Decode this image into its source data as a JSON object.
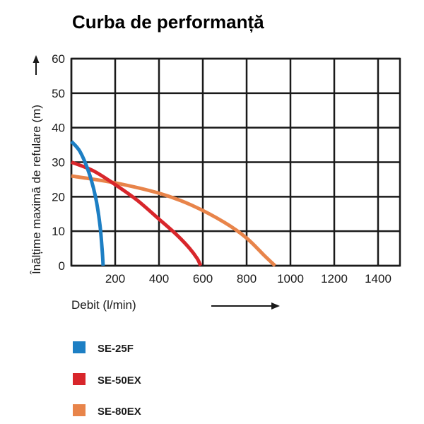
{
  "chart_data": {
    "type": "line",
    "title": "Curba de performanță",
    "xlabel": "Debit (l/min)",
    "ylabel": "Înălțime maximă de refulare (m)",
    "xlim": [
      0,
      1500
    ],
    "ylim": [
      0,
      60
    ],
    "x_ticks": [
      200,
      400,
      600,
      800,
      1000,
      1200,
      1400
    ],
    "y_ticks": [
      0,
      10,
      20,
      30,
      40,
      50,
      60
    ],
    "grid": true,
    "legend_position": "bottom-left",
    "series": [
      {
        "name": "SE-25F",
        "color": "#1d7fc4",
        "points": [
          [
            0,
            36
          ],
          [
            40,
            33
          ],
          [
            80,
            27
          ],
          [
            110,
            20
          ],
          [
            130,
            12
          ],
          [
            140,
            5
          ],
          [
            145,
            0
          ]
        ]
      },
      {
        "name": "SE-50EX",
        "color": "#d8262b",
        "points": [
          [
            0,
            30
          ],
          [
            100,
            27.5
          ],
          [
            200,
            23.5
          ],
          [
            300,
            19
          ],
          [
            400,
            13.5
          ],
          [
            480,
            9
          ],
          [
            540,
            5
          ],
          [
            575,
            2
          ],
          [
            590,
            0
          ]
        ]
      },
      {
        "name": "SE-80EX",
        "color": "#e8844a",
        "points": [
          [
            0,
            26
          ],
          [
            200,
            24
          ],
          [
            400,
            21
          ],
          [
            550,
            17.5
          ],
          [
            700,
            12.5
          ],
          [
            800,
            8
          ],
          [
            880,
            3
          ],
          [
            930,
            0
          ]
        ]
      }
    ]
  }
}
